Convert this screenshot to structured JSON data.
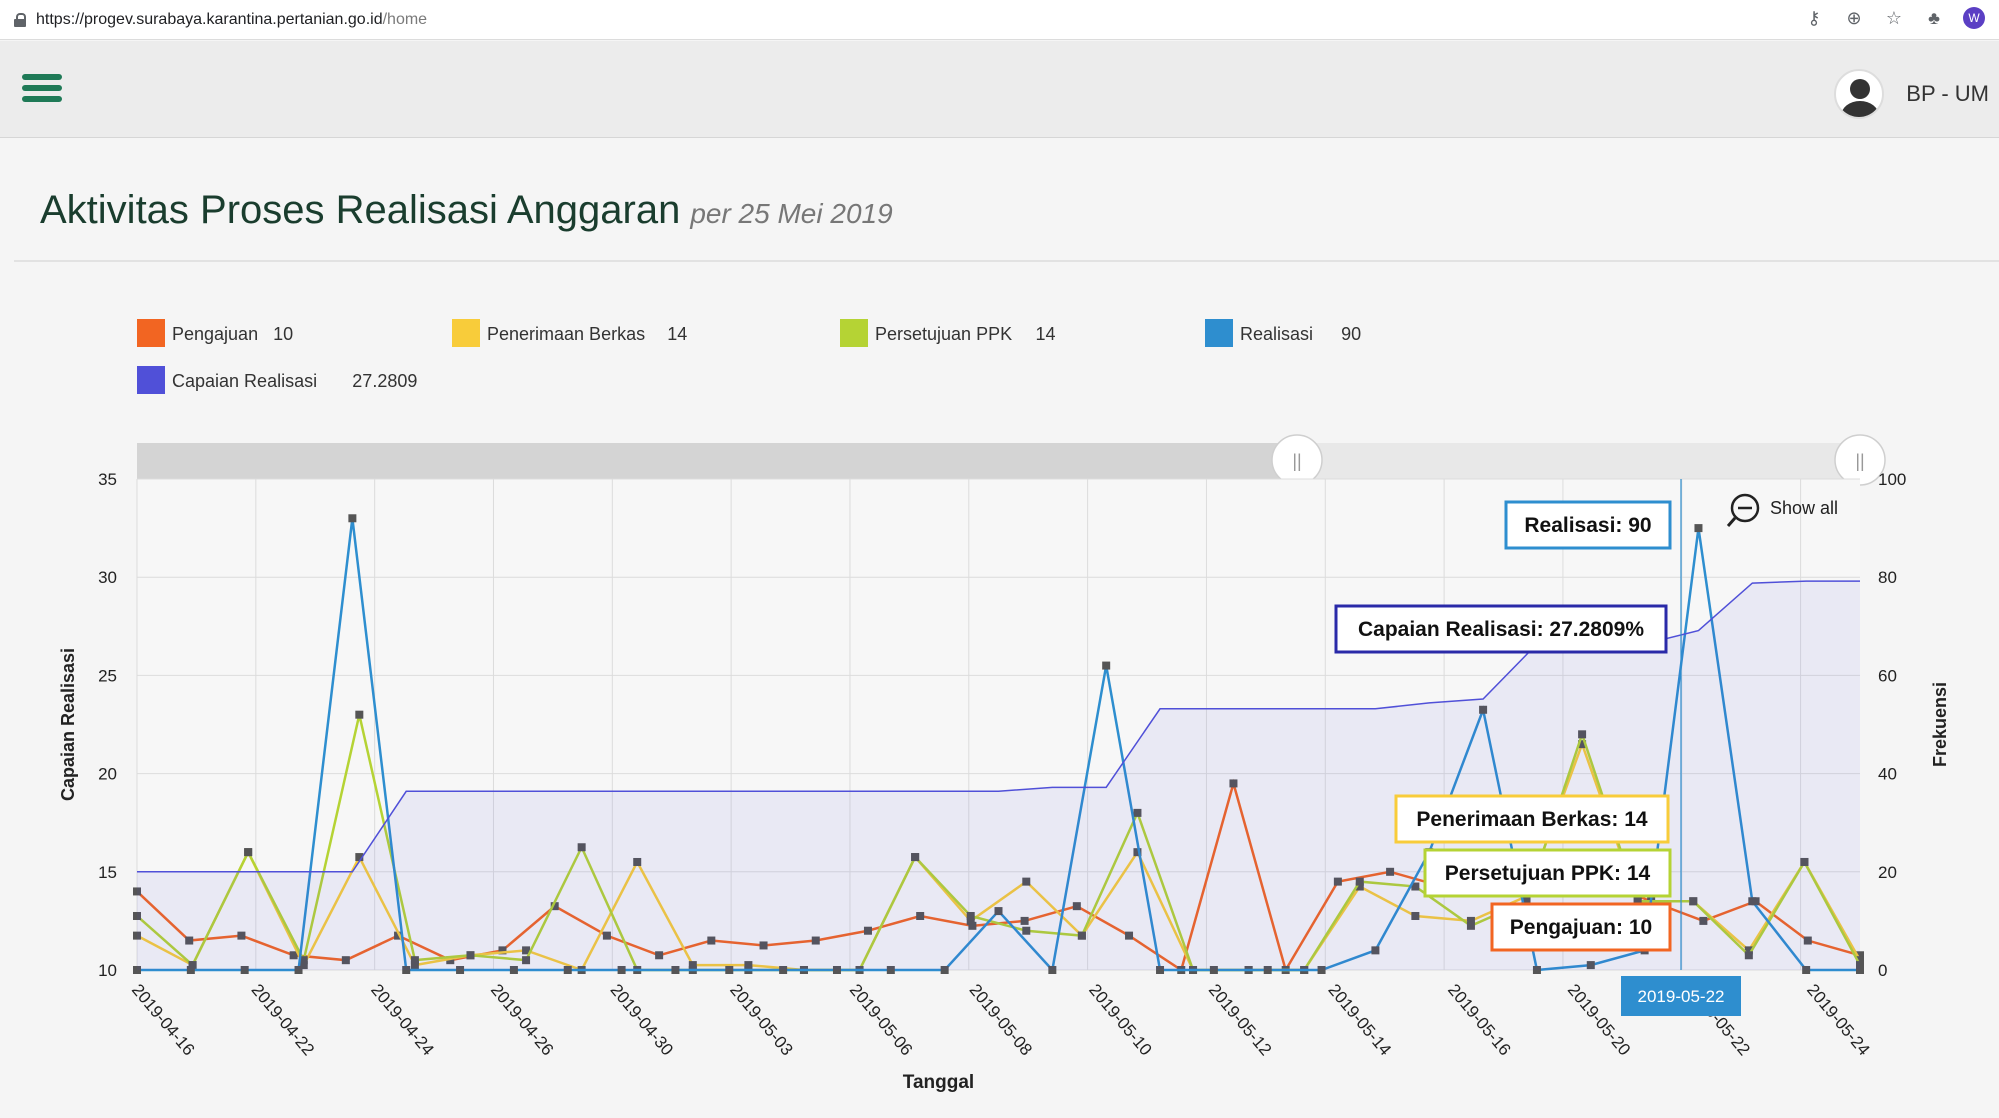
{
  "browser": {
    "url_host": "https://progev.surabaya.karantina.pertanian.go.id",
    "url_path": "/home",
    "profile_initial": "W"
  },
  "header": {
    "username": "BP - UM"
  },
  "page": {
    "title": "Aktivitas Proses Realisasi Anggaran",
    "subtitle": "per 25 Mei 2019"
  },
  "chart_data": {
    "type": "line",
    "xlabel": "Tanggal",
    "ylabel_left": "Capaian Realisasi",
    "ylabel_right": "Frekuensi",
    "ylim_left": [
      10,
      35
    ],
    "ylim_right": [
      0,
      100
    ],
    "yticks_left": [
      10,
      15,
      20,
      25,
      30,
      35
    ],
    "yticks_right": [
      0,
      20,
      40,
      60,
      80,
      100
    ],
    "grid": true,
    "x_tick_labels": [
      "2019-04-16",
      "2019-04-22",
      "2019-04-24",
      "2019-04-26",
      "2019-04-30",
      "2019-05-03",
      "2019-05-06",
      "2019-05-08",
      "2019-05-10",
      "2019-05-12",
      "2019-05-14",
      "2019-05-16",
      "2019-05-20",
      "2019-05-22",
      "2019-05-24"
    ],
    "legend": [
      {
        "name": "Pengajuan",
        "value": "10",
        "color": "#f26522"
      },
      {
        "name": "Penerimaan Berkas",
        "value": "14",
        "color": "#f8cc3a"
      },
      {
        "name": "Persetujuan PPK",
        "value": "14",
        "color": "#b5d334"
      },
      {
        "name": "Realisasi",
        "value": "90",
        "color": "#2e8ecf"
      },
      {
        "name": "Capaian Realisasi",
        "value": "27.2809",
        "color": "#5050d8"
      }
    ],
    "series": [
      {
        "name": "Pengajuan",
        "axis": "right",
        "color": "#f26522",
        "values": [
          16,
          6,
          7,
          3,
          2,
          7,
          2,
          4,
          13,
          7,
          3,
          6,
          5,
          6,
          8,
          11,
          9,
          10,
          13,
          7,
          0,
          38,
          0,
          18,
          20,
          17,
          18,
          17,
          18,
          14,
          10,
          14,
          6,
          3
        ]
      },
      {
        "name": "Penerimaan Berkas",
        "axis": "right",
        "color": "#f8cc3a",
        "values": [
          7,
          1,
          24,
          1,
          23,
          1,
          3,
          4,
          0,
          22,
          1,
          1,
          0,
          0,
          23,
          10,
          18,
          7,
          24,
          0,
          0,
          0,
          17,
          11,
          10,
          15,
          46,
          14,
          14,
          4,
          22,
          2
        ]
      },
      {
        "name": "Persetujuan PPK",
        "axis": "right",
        "color": "#b5d334",
        "values": [
          11,
          1,
          24,
          2,
          52,
          2,
          3,
          2,
          25,
          0,
          0,
          0,
          0,
          0,
          23,
          11,
          8,
          7,
          32,
          0,
          0,
          0,
          18,
          17,
          9,
          14,
          48,
          14,
          14,
          3,
          22,
          1
        ]
      },
      {
        "name": "Realisasi",
        "axis": "right",
        "color": "#2e8ecf",
        "values": [
          0,
          0,
          0,
          0,
          92,
          0,
          0,
          0,
          0,
          0,
          0,
          0,
          0,
          0,
          0,
          0,
          12,
          0,
          62,
          0,
          0,
          0,
          0,
          4,
          24,
          53,
          0,
          1,
          4,
          90,
          14,
          0,
          0
        ]
      },
      {
        "name": "Capaian Realisasi",
        "axis": "left",
        "color": "#5050d8",
        "values": [
          15,
          15,
          15,
          15,
          15,
          19.1,
          19.1,
          19.1,
          19.1,
          19.1,
          19.1,
          19.1,
          19.1,
          19.1,
          19.1,
          19.1,
          19.1,
          19.3,
          19.3,
          23.3,
          23.3,
          23.3,
          23.3,
          23.3,
          23.6,
          23.8,
          26.6,
          26.6,
          26.6,
          27.28,
          29.7,
          29.8,
          29.8
        ]
      }
    ],
    "tooltip": {
      "date": "2019-05-22",
      "items": [
        {
          "label": "Realisasi: 90",
          "color": "#2e8ecf"
        },
        {
          "label": "Capaian Realisasi: 27.2809%",
          "color": "#2a2aa8"
        },
        {
          "label": "Penerimaan Berkas: 14",
          "color": "#f8cc3a"
        },
        {
          "label": "Persetujuan PPK: 14",
          "color": "#b5d334"
        },
        {
          "label": "Pengajuan: 10",
          "color": "#f26522"
        }
      ]
    },
    "show_all_label": "Show all",
    "scrollbar_handle_glyph": "||"
  }
}
